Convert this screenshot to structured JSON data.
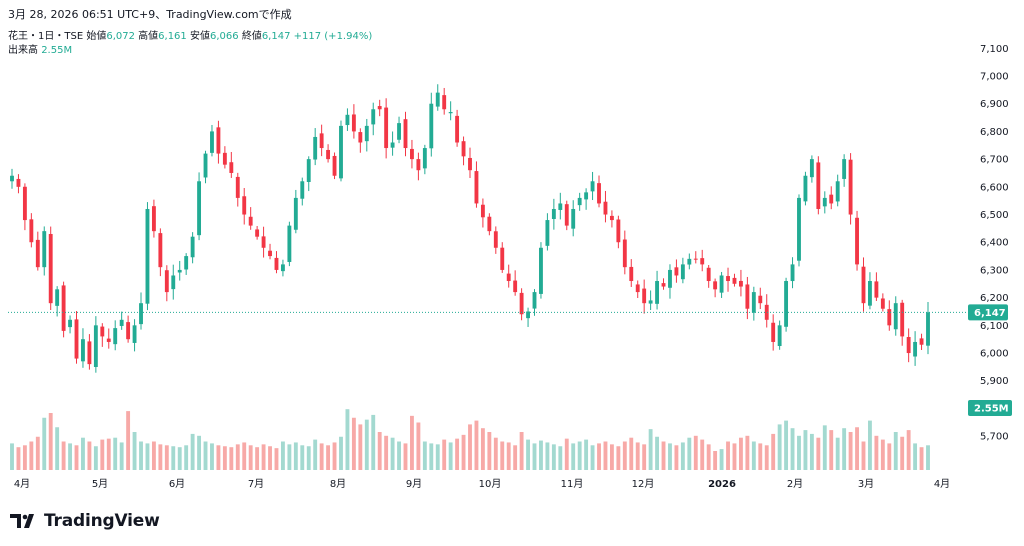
{
  "header": {
    "text": "3月 28, 2026 06:51 UTC+9、TradingView.comで作成"
  },
  "legend": {
    "symbol": "花王・1日・TSE",
    "open_label": "始値",
    "open": "6,072",
    "high_label": "高値",
    "high": "6,161",
    "low_label": "安値",
    "low": "6,066",
    "close_label": "終値",
    "close": "6,147",
    "change": "+117 (+1.94%)",
    "volume_label": "出来高",
    "volume": "2.55M"
  },
  "colors": {
    "up": "#22ab94",
    "down": "#f23645",
    "up_volume": "#a3d9d0",
    "down_volume": "#f7a9a7",
    "price_line": "#22ab94"
  },
  "logo": {
    "icon": "tradingview-logo-icon",
    "text": "TradingView"
  },
  "chart_data": {
    "type": "candlestick",
    "title": "",
    "y_axis": {
      "ticks": [
        "7,100",
        "7,000",
        "6,900",
        "6,800",
        "6,700",
        "6,600",
        "6,500",
        "6,400",
        "6,300",
        "6,200",
        "6,100",
        "6,000",
        "5,900",
        "5,800",
        "5,700"
      ],
      "range": [
        5650,
        7130
      ]
    },
    "x_axis": {
      "ticks": [
        "4月",
        "5月",
        "6月",
        "7月",
        "8月",
        "9月",
        "10月",
        "11月",
        "12月",
        "2026",
        "2月",
        "3月",
        "4月"
      ]
    },
    "last_price_label": "6,147",
    "last_volume_label": "2.55M",
    "grid": false,
    "volume_overlay": true,
    "close_path": [
      6640,
      6600,
      6480,
      6400,
      6310,
      6440,
      6180,
      6230,
      6080,
      6120,
      5980,
      6050,
      5960,
      6100,
      6060,
      6040,
      6090,
      6120,
      6050,
      6100,
      6180,
      6520,
      6440,
      6310,
      6220,
      6280,
      6300,
      6350,
      6420,
      6620,
      6720,
      6800,
      6720,
      6680,
      6650,
      6560,
      6500,
      6460,
      6420,
      6380,
      6350,
      6300,
      6320,
      6460,
      6560,
      6620,
      6700,
      6780,
      6740,
      6700,
      6640,
      6820,
      6860,
      6800,
      6760,
      6820,
      6880,
      6880,
      6740,
      6760,
      6830,
      6740,
      6700,
      6660,
      6740,
      6900,
      6940,
      6880,
      6870,
      6760,
      6710,
      6660,
      6540,
      6490,
      6440,
      6380,
      6300,
      6260,
      6220,
      6140,
      6150,
      6220,
      6380,
      6480,
      6520,
      6540,
      6460,
      6520,
      6560,
      6580,
      6620,
      6540,
      6500,
      6480,
      6400,
      6310,
      6260,
      6220,
      6180,
      6190,
      6260,
      6240,
      6300,
      6280,
      6320,
      6340,
      6340,
      6320,
      6260,
      6230,
      6280,
      6260,
      6250,
      6240,
      6160,
      6220,
      6180,
      6120,
      6040,
      6100,
      6260,
      6320,
      6560,
      6640,
      6700,
      6520,
      6560,
      6540,
      6620,
      6700,
      6500,
      6320,
      6180,
      6260,
      6200,
      6160,
      6100,
      6180,
      6060,
      6000,
      6040,
      6030,
      6147
    ],
    "volume_levels": [
      0.28,
      0.24,
      0.26,
      0.3,
      0.35,
      0.55,
      0.6,
      0.45,
      0.3,
      0.28,
      0.26,
      0.34,
      0.3,
      0.25,
      0.32,
      0.33,
      0.34,
      0.29,
      0.62,
      0.4,
      0.3,
      0.28,
      0.3,
      0.27,
      0.26,
      0.25,
      0.24,
      0.26,
      0.38,
      0.36,
      0.3,
      0.28,
      0.26,
      0.25,
      0.24,
      0.27,
      0.29,
      0.26,
      0.24,
      0.27,
      0.25,
      0.23,
      0.3,
      0.27,
      0.29,
      0.26,
      0.25,
      0.32,
      0.28,
      0.26,
      0.29,
      0.35,
      0.64,
      0.55,
      0.48,
      0.53,
      0.58,
      0.4,
      0.36,
      0.34,
      0.3,
      0.28,
      0.57,
      0.5,
      0.3,
      0.28,
      0.27,
      0.32,
      0.29,
      0.33,
      0.37,
      0.48,
      0.52,
      0.44,
      0.4,
      0.34,
      0.3,
      0.29,
      0.26,
      0.4,
      0.32,
      0.28,
      0.31,
      0.29,
      0.27,
      0.25,
      0.33,
      0.28,
      0.3,
      0.32,
      0.26,
      0.28,
      0.3,
      0.27,
      0.25,
      0.3,
      0.34,
      0.29,
      0.27,
      0.43,
      0.35,
      0.3,
      0.28,
      0.26,
      0.29,
      0.34,
      0.36,
      0.32,
      0.27,
      0.2,
      0.22,
      0.3,
      0.28,
      0.34,
      0.36,
      0.3,
      0.28,
      0.26,
      0.38,
      0.48,
      0.52,
      0.44,
      0.36,
      0.42,
      0.38,
      0.34,
      0.47,
      0.42,
      0.34,
      0.44,
      0.4,
      0.45,
      0.3,
      0.52,
      0.36,
      0.32,
      0.28,
      0.4,
      0.35,
      0.42
    ]
  }
}
